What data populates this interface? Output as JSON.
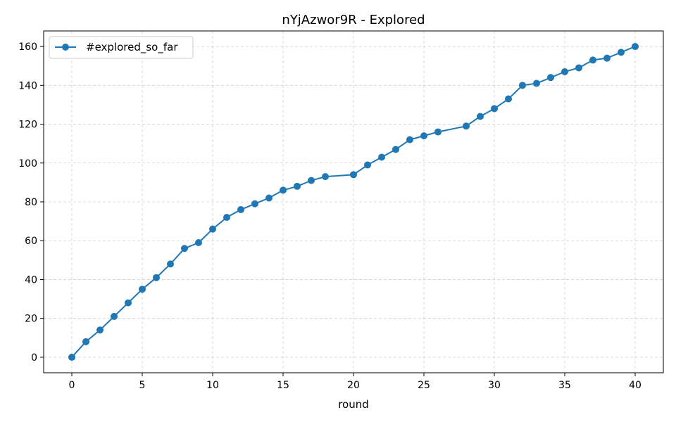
{
  "chart_data": {
    "type": "line",
    "title": "nYjAzwor9R - Explored",
    "xlabel": "round",
    "ylabel": "",
    "xlim": [
      -2,
      42
    ],
    "ylim": [
      -8,
      168
    ],
    "xticks": [
      0,
      5,
      10,
      15,
      20,
      25,
      30,
      35,
      40
    ],
    "yticks": [
      0,
      20,
      40,
      60,
      80,
      100,
      120,
      140,
      160
    ],
    "grid": true,
    "legend_position": "upper-left",
    "series": [
      {
        "name": "#explored_so_far",
        "color": "#1f77b4",
        "marker": "circle",
        "x": [
          0,
          1,
          2,
          3,
          4,
          5,
          6,
          7,
          8,
          9,
          10,
          11,
          12,
          13,
          14,
          15,
          16,
          17,
          18,
          20,
          21,
          22,
          23,
          24,
          25,
          26,
          28,
          29,
          30,
          31,
          32,
          33,
          34,
          35,
          36,
          37,
          38,
          39,
          40
        ],
        "y": [
          0,
          8,
          14,
          21,
          28,
          35,
          41,
          48,
          56,
          59,
          66,
          72,
          76,
          79,
          82,
          86,
          88,
          91,
          93,
          94,
          99,
          103,
          107,
          112,
          114,
          116,
          119,
          124,
          128,
          133,
          140,
          141,
          144,
          147,
          149,
          153,
          154,
          157,
          160
        ]
      }
    ]
  }
}
